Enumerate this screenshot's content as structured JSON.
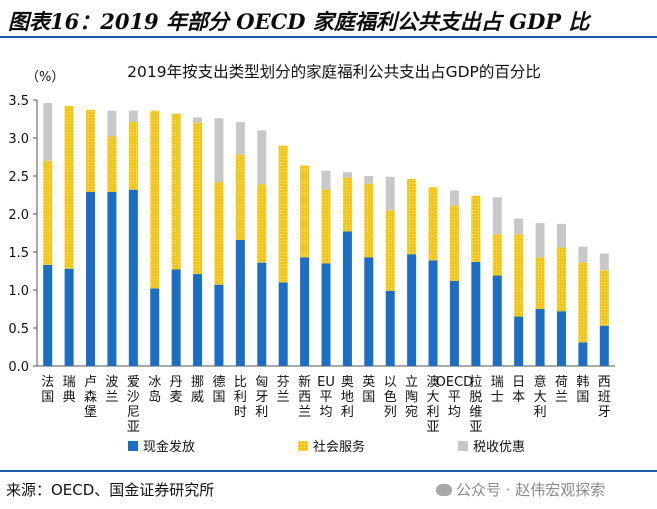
{
  "header": {
    "title": "图表16：2019 年部分 OECD 家庭福利公共支出占 GDP 比"
  },
  "footer": {
    "source": "来源：OECD、国金证券研究所",
    "watermark": "公众号 · 赵伟宏观探索"
  },
  "colors": {
    "cash": "#1b6ec2",
    "services": "#f5c518",
    "services_dot": "#fdeb9a",
    "tax": "#c8c8c8",
    "rule": "#1e5aa8"
  },
  "chart_data": {
    "type": "bar",
    "stacked": true,
    "title": "2019年按支出类型划分的家庭福利公共支出占GDP的百分比",
    "ylabel": "（%）",
    "ylim": [
      0,
      3.5
    ],
    "yticks": [
      "0.0",
      "0.5",
      "1.0",
      "1.5",
      "2.0",
      "2.5",
      "3.0",
      "3.5"
    ],
    "categories": [
      "法国",
      "瑞典",
      "卢森堡",
      "波兰",
      "爱沙尼亚",
      "冰岛",
      "丹麦",
      "挪威",
      "德国",
      "比利时",
      "匈牙利",
      "芬兰",
      "新西兰",
      "EU平均",
      "奥地利",
      "英国",
      "以色列",
      "立陶宛",
      "澳大利亚",
      "OECD平均",
      "拉脱维亚",
      "瑞士",
      "日本",
      "意大利",
      "荷兰",
      "韩国",
      "西班牙"
    ],
    "series": [
      {
        "name": "现金发放",
        "values": [
          1.33,
          1.28,
          2.29,
          2.29,
          2.32,
          1.02,
          1.27,
          1.21,
          1.07,
          1.66,
          1.36,
          1.1,
          1.43,
          1.35,
          1.77,
          1.43,
          0.99,
          1.47,
          1.39,
          1.12,
          1.37,
          1.19,
          0.65,
          0.75,
          0.72,
          0.31,
          0.53
        ]
      },
      {
        "name": "社会服务",
        "values": [
          1.37,
          2.14,
          1.08,
          0.73,
          0.89,
          2.34,
          2.05,
          1.99,
          1.35,
          1.12,
          1.03,
          1.8,
          1.21,
          0.97,
          0.71,
          0.97,
          1.06,
          0.99,
          0.96,
          0.99,
          0.87,
          0.54,
          1.08,
          0.68,
          0.84,
          1.05,
          0.73
        ]
      },
      {
        "name": "税收优惠",
        "values": [
          0.76,
          0.0,
          0.0,
          0.34,
          0.15,
          0.0,
          0.0,
          0.07,
          0.84,
          0.43,
          0.71,
          0.0,
          0.0,
          0.25,
          0.07,
          0.1,
          0.44,
          0.0,
          0.0,
          0.2,
          0.0,
          0.49,
          0.21,
          0.45,
          0.31,
          0.21,
          0.22
        ]
      }
    ],
    "legend": {
      "position": "bottom",
      "items": [
        "现金发放",
        "社会服务",
        "税收优惠"
      ]
    }
  }
}
